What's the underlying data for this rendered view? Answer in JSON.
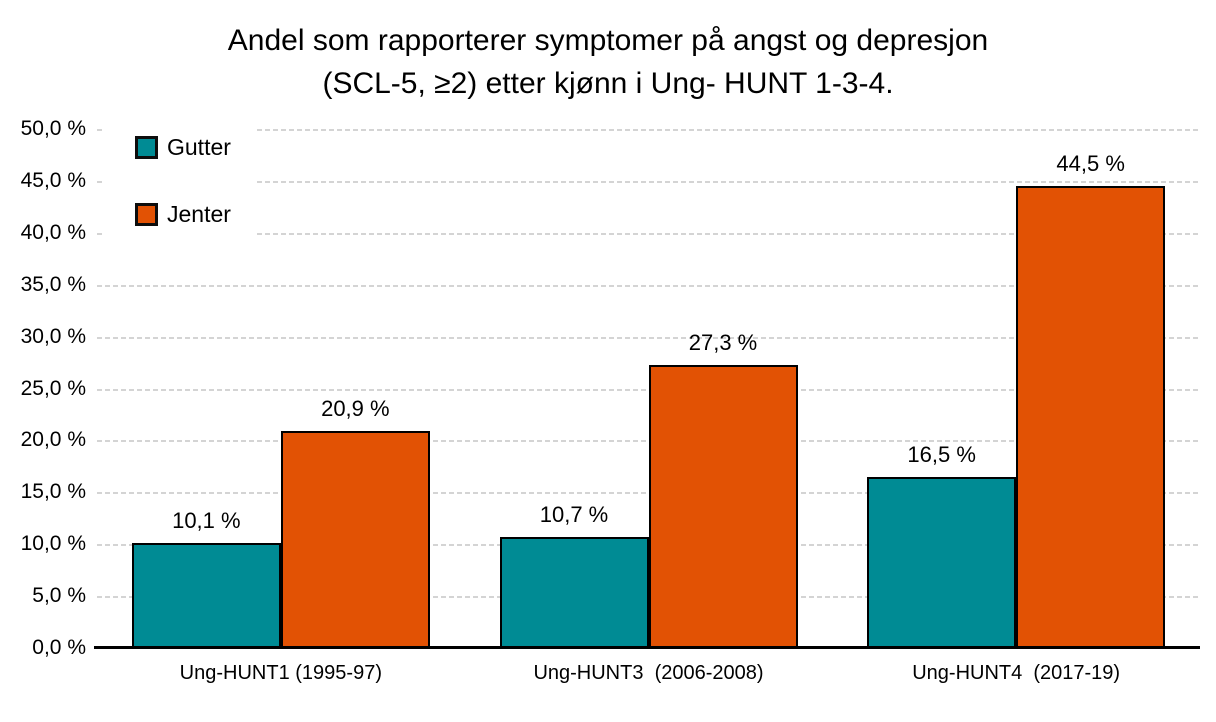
{
  "title": {
    "line1": "Andel som rapporterer symptomer på angst og depresjon",
    "line2": "(SCL-5, ≥2) etter kjønn i Ung- HUNT 1-3-4."
  },
  "colors": {
    "gutter": "#008B94",
    "jenter": "#E25204",
    "gridline": "#D4D4D4",
    "axis": "#000000",
    "background": "#FFFFFF"
  },
  "legend": {
    "items": [
      {
        "label": "Gutter"
      },
      {
        "label": "Jenter"
      }
    ]
  },
  "chart_data": {
    "type": "bar",
    "title": "Andel som rapporterer symptomer på angst og depresjon (SCL-5, ≥2) etter kjønn i Ung- HUNT 1-3-4.",
    "categories": [
      "Ung-HUNT1 (1995-97)",
      "Ung-HUNT3  (2006-2008)",
      "Ung-HUNT4  (2017-19)"
    ],
    "series": [
      {
        "name": "Gutter",
        "color": "#008B94",
        "values": [
          10.1,
          10.7,
          16.5
        ],
        "labels": [
          "10,1 %",
          "10,7 %",
          "16,5 %"
        ]
      },
      {
        "name": "Jenter",
        "color": "#E25204",
        "values": [
          20.9,
          27.3,
          44.5
        ],
        "labels": [
          "20,9 %",
          "27,3 %",
          "44,5 %"
        ]
      }
    ],
    "xlabel": "",
    "ylabel": "",
    "ylim": [
      0,
      50
    ],
    "y_tick_step": 5,
    "y_tick_labels": [
      "50,0 %",
      "45,0 %",
      "40,0 %",
      "35,0 %",
      "30,0 %",
      "25,0 %",
      "20,0 %",
      "15,0 %",
      "10,0 %",
      "5,0 %",
      "0,0 %"
    ],
    "grid": "horizontal-dashed",
    "legend_position": "top-left-inside"
  }
}
